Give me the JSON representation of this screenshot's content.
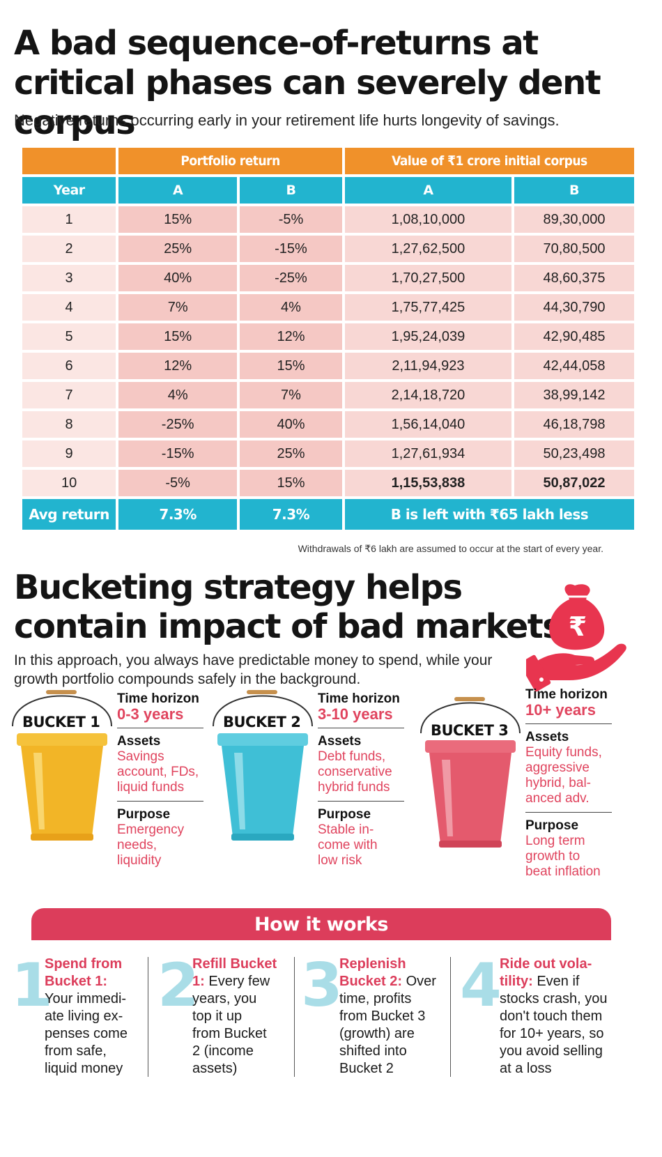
{
  "section1": {
    "title": "A bad sequence-of-returns at critical phases can severely dent corpus",
    "subtitle": "Negative returns occurring early in your retirement life hurts longevity of savings.",
    "group_headers": {
      "portfolio_return": "Portfolio return",
      "value": "Value of ₹1 crore initial corpus"
    },
    "col_headers": {
      "year": "Year",
      "ret_a": "A",
      "ret_b": "B",
      "val_a": "A",
      "val_b": "B"
    },
    "rows": [
      {
        "year": "1",
        "ret_a": "15%",
        "ret_b": "-5%",
        "val_a": "1,08,10,000",
        "val_b": "89,30,000"
      },
      {
        "year": "2",
        "ret_a": "25%",
        "ret_b": "-15%",
        "val_a": "1,27,62,500",
        "val_b": "70,80,500"
      },
      {
        "year": "3",
        "ret_a": "40%",
        "ret_b": "-25%",
        "val_a": "1,70,27,500",
        "val_b": "48,60,375"
      },
      {
        "year": "4",
        "ret_a": "7%",
        "ret_b": "4%",
        "val_a": "1,75,77,425",
        "val_b": "44,30,790"
      },
      {
        "year": "5",
        "ret_a": "15%",
        "ret_b": "12%",
        "val_a": "1,95,24,039",
        "val_b": "42,90,485"
      },
      {
        "year": "6",
        "ret_a": "12%",
        "ret_b": "15%",
        "val_a": "2,11,94,923",
        "val_b": "42,44,058"
      },
      {
        "year": "7",
        "ret_a": "4%",
        "ret_b": "7%",
        "val_a": "2,14,18,720",
        "val_b": "38,99,142"
      },
      {
        "year": "8",
        "ret_a": "-25%",
        "ret_b": "40%",
        "val_a": "1,56,14,040",
        "val_b": "46,18,798"
      },
      {
        "year": "9",
        "ret_a": "-15%",
        "ret_b": "25%",
        "val_a": "1,27,61,934",
        "val_b": "50,23,498"
      },
      {
        "year": "10",
        "ret_a": "-5%",
        "ret_b": "15%",
        "val_a": "1,15,53,838",
        "val_b": "50,87,022"
      }
    ],
    "avg_row": {
      "label": "Avg return",
      "ret_a": "7.3%",
      "ret_b": "7.3%",
      "note": "B is left with ₹65 lakh less"
    },
    "footnote": "Withdrawals of ₹6 lakh are assumed to occur at the start of every year."
  },
  "section2": {
    "title": "Bucketing strategy helps contain impact of bad markets",
    "subtitle": "In this approach, you always have predictable money to spend, while your growth portfolio compounds safely in the background.",
    "icons": {
      "hand": "hand-holding-money-bag-icon",
      "currency": "₹"
    },
    "labels": {
      "time_horizon": "Time horizon",
      "assets": "Assets",
      "purpose": "Purpose"
    },
    "buckets": [
      {
        "name": "BUCKET 1",
        "color": "#f2b527",
        "horizon": "0-3 years",
        "assets": [
          "Savings",
          "account, FDs,",
          "liquid funds"
        ],
        "purpose": [
          "Emergency",
          "needs,",
          "liquidity"
        ]
      },
      {
        "name": "BUCKET 2",
        "color": "#3fbfd6",
        "horizon": "3-10 years",
        "assets": [
          "Debt funds,",
          "conservative",
          "hybrid funds"
        ],
        "purpose": [
          "Stable in-",
          "come with",
          "low risk"
        ]
      },
      {
        "name": "BUCKET 3",
        "color": "#e45a6d",
        "horizon": "10+ years",
        "assets": [
          "Equity funds,",
          "aggressive",
          "hybrid, bal-",
          "anced adv."
        ],
        "purpose": [
          "Long term",
          "growth to",
          "beat inflation"
        ]
      }
    ],
    "how_it_works": {
      "title": "How it works",
      "steps": [
        {
          "num": "1",
          "lead": [
            "Spend from",
            "Bucket 1:"
          ],
          "body": [
            "Your immedi-",
            "ate living ex-",
            "penses come",
            "from safe,",
            "liquid money"
          ]
        },
        {
          "num": "2",
          "lead": [
            "Refill Bucket",
            "1:"
          ],
          "lead_tail": " Every few",
          "body": [
            "years, you",
            "top it up",
            "from Bucket",
            "2 (income",
            "assets)"
          ]
        },
        {
          "num": "3",
          "lead": [
            "Replenish",
            "Bucket 2:"
          ],
          "lead_tail": " Over",
          "body": [
            "time, profits",
            "from Bucket 3",
            "(growth) are",
            "shifted into",
            "Bucket 2"
          ]
        },
        {
          "num": "4",
          "lead": [
            "Ride out vola-",
            "tility:"
          ],
          "lead_tail": " Even if",
          "body": [
            "stocks crash, you",
            "don't touch them",
            "for 10+ years, so",
            "you avoid selling",
            "at a loss"
          ]
        }
      ]
    }
  }
}
